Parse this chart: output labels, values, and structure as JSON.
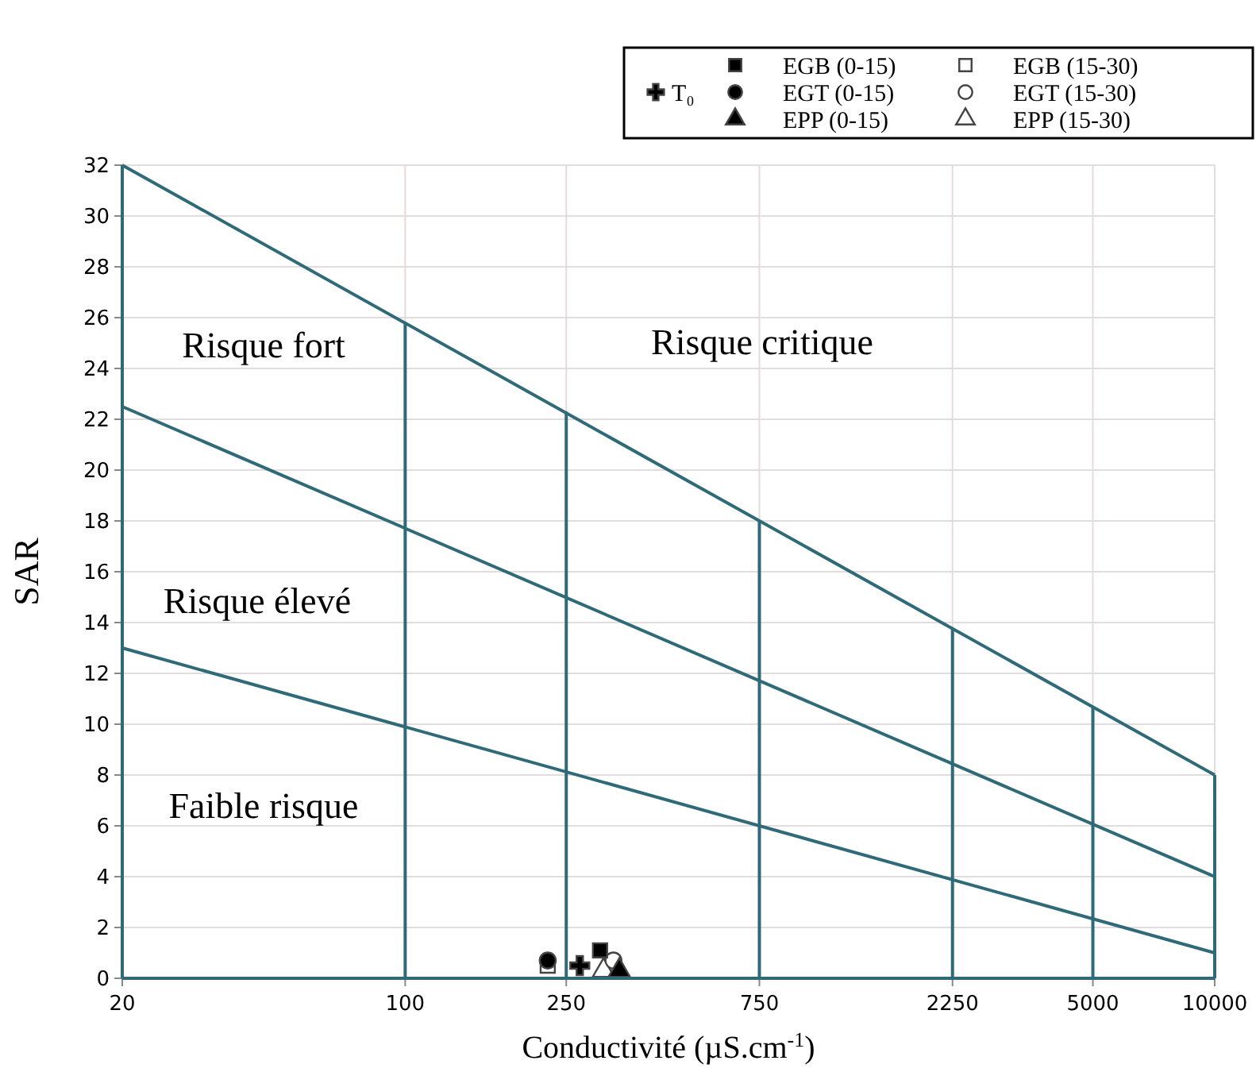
{
  "chart_data": {
    "type": "scatter",
    "xlabel": "Conductivité (µS.cm$^{-1}$)",
    "ylabel": "SAR",
    "log": "x",
    "xlim": [
      20,
      10000
    ],
    "xticks": [
      20,
      100,
      250,
      750,
      2250,
      5000,
      10000
    ],
    "ylim": [
      0,
      32
    ],
    "yticks": [
      0,
      2,
      4,
      6,
      8,
      10,
      12,
      14,
      16,
      18,
      20,
      22,
      24,
      26,
      28,
      30,
      32
    ],
    "grid": true,
    "legend": "top right",
    "annotations": [
      "Risque fort",
      "Risque critique",
      "Risque élevé",
      "Faible risque"
    ],
    "series": [
      {
        "type": "line",
        "color": "#2f6a78",
        "marker": "none",
        "x": [
          20,
          20
        ],
        "values": [
          0,
          32
        ]
      },
      {
        "type": "line",
        "color": "#2f6a78",
        "marker": "none",
        "x": [
          20,
          10000
        ],
        "values": [
          0,
          0
        ]
      },
      {
        "type": "line",
        "color": "#2f6a78",
        "marker": "none",
        "x": [
          20,
          10000
        ],
        "values": [
          32,
          8
        ]
      },
      {
        "type": "line",
        "color": "#2f6a78",
        "marker": "none",
        "x": [
          20,
          10000
        ],
        "values": [
          22.5,
          4
        ]
      },
      {
        "type": "line",
        "color": "#2f6a78",
        "marker": "none",
        "x": [
          20,
          10000
        ],
        "values": [
          13,
          1
        ]
      },
      {
        "type": "line",
        "color": "#2f6a78",
        "marker": "none",
        "x": [
          100,
          100
        ],
        "values": [
          0,
          25.8
        ]
      },
      {
        "type": "line",
        "color": "#2f6a78",
        "marker": "none",
        "x": [
          250,
          250
        ],
        "values": [
          0,
          22.3
        ]
      },
      {
        "type": "line",
        "color": "#2f6a78",
        "marker": "none",
        "x": [
          750,
          750
        ],
        "values": [
          0,
          18
        ]
      },
      {
        "type": "line",
        "color": "#2f6a78",
        "marker": "none",
        "x": [
          2250,
          2250
        ],
        "values": [
          0,
          13.8
        ]
      },
      {
        "type": "line",
        "color": "#2f6a78",
        "marker": "none",
        "x": [
          5000,
          5000
        ],
        "values": [
          0,
          10.7
        ]
      },
      {
        "type": "line",
        "color": "#2f6a78",
        "marker": "none",
        "x": [
          10000,
          10000
        ],
        "values": [
          0,
          8
        ]
      },
      {
        "name": "T₀",
        "color": "#000000",
        "marker": "cross",
        "x": [
          270
        ],
        "values": [
          0.5
        ]
      },
      {
        "name": "EGB (0-15)",
        "color": "#000000",
        "marker": "square",
        "x": [
          303
        ],
        "values": [
          1.1
        ]
      },
      {
        "name": "EGT (0-15)",
        "color": "#000000",
        "marker": "circle",
        "x": [
          225
        ],
        "values": [
          0.7
        ]
      },
      {
        "name": "EPP (0-15)",
        "color": "#000000",
        "marker": "triangle",
        "x": [
          338
        ],
        "values": [
          0.3
        ]
      },
      {
        "name": "EGB (15-30)",
        "color": "#ffffff",
        "marker": "square",
        "x": [
          225
        ],
        "values": [
          0.5
        ]
      },
      {
        "name": "EGT (15-30)",
        "color": "#ffffff",
        "marker": "circle",
        "x": [
          327
        ],
        "values": [
          0.7
        ]
      },
      {
        "name": "EPP (15-30)",
        "color": "#ffffff",
        "marker": "triangle",
        "x": [
          309
        ],
        "values": [
          0.3
        ]
      }
    ]
  }
}
